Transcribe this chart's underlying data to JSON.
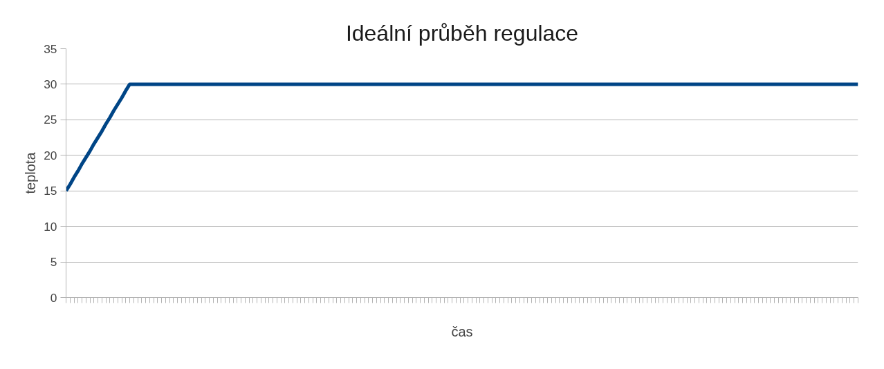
{
  "chart_data": {
    "type": "line",
    "title": "Ideální průběh regulace",
    "xlabel": "čas",
    "ylabel": "teplota",
    "categories": [
      null,
      null,
      null,
      null,
      null,
      null,
      null,
      null,
      null,
      null,
      null,
      null,
      null,
      null,
      null,
      null,
      null,
      null,
      null,
      null,
      null,
      null,
      null,
      null,
      null,
      null,
      null,
      null,
      null,
      null,
      null,
      null,
      null,
      null,
      null,
      null,
      null,
      null,
      null,
      null,
      null,
      null,
      null,
      null,
      null,
      null,
      null,
      null,
      null,
      null,
      null,
      null,
      null,
      null,
      null,
      null,
      null,
      null,
      null,
      null,
      null,
      null,
      null,
      null,
      null,
      null,
      null,
      null,
      null,
      null,
      null,
      null,
      null,
      null,
      null,
      null,
      null,
      null,
      null,
      null,
      null,
      null,
      null,
      null,
      null,
      null,
      null,
      null,
      null,
      null,
      null,
      null,
      null,
      null,
      null,
      null,
      null,
      null,
      null,
      null,
      null,
      null,
      null,
      null,
      null,
      null,
      null,
      null,
      null,
      null,
      null,
      null,
      null,
      null,
      null,
      null,
      null,
      null,
      null,
      null,
      null,
      null,
      null,
      null,
      null,
      null,
      null,
      null,
      null,
      null,
      null,
      null,
      null,
      null,
      null,
      null,
      null,
      null,
      null,
      null,
      null,
      null,
      null,
      null,
      null,
      null,
      null,
      null,
      null,
      null,
      null,
      null,
      null,
      null,
      null,
      null,
      null,
      null,
      null,
      null,
      null,
      null,
      null,
      null,
      null,
      null,
      null,
      null,
      null,
      null,
      null,
      null,
      null,
      null,
      null,
      null,
      null,
      null,
      null,
      null,
      null,
      null,
      null,
      null,
      null,
      null,
      null,
      null,
      null,
      null,
      null,
      null,
      null,
      null,
      null,
      null,
      null,
      null,
      null,
      null
    ],
    "series": [
      {
        "color": "#004586",
        "values": [
          15,
          15.9,
          16.9,
          17.8,
          18.8,
          19.7,
          20.6,
          21.6,
          22.5,
          23.4,
          24.4,
          25.3,
          26.3,
          27.2,
          28.1,
          29.1,
          30,
          30,
          30,
          30,
          30,
          30,
          30,
          30,
          30,
          30,
          30,
          30,
          30,
          30,
          30,
          30,
          30,
          30,
          30,
          30,
          30,
          30,
          30,
          30,
          30,
          30,
          30,
          30,
          30,
          30,
          30,
          30,
          30,
          30,
          30,
          30,
          30,
          30,
          30,
          30,
          30,
          30,
          30,
          30,
          30,
          30,
          30,
          30,
          30,
          30,
          30,
          30,
          30,
          30,
          30,
          30,
          30,
          30,
          30,
          30,
          30,
          30,
          30,
          30,
          30,
          30,
          30,
          30,
          30,
          30,
          30,
          30,
          30,
          30,
          30,
          30,
          30,
          30,
          30,
          30,
          30,
          30,
          30,
          30,
          30,
          30,
          30,
          30,
          30,
          30,
          30,
          30,
          30,
          30,
          30,
          30,
          30,
          30,
          30,
          30,
          30,
          30,
          30,
          30,
          30,
          30,
          30,
          30,
          30,
          30,
          30,
          30,
          30,
          30,
          30,
          30,
          30,
          30,
          30,
          30,
          30,
          30,
          30,
          30,
          30,
          30,
          30,
          30,
          30,
          30,
          30,
          30,
          30,
          30,
          30,
          30,
          30,
          30,
          30,
          30,
          30,
          30,
          30,
          30,
          30,
          30,
          30,
          30,
          30,
          30,
          30,
          30,
          30,
          30,
          30,
          30,
          30,
          30,
          30,
          30,
          30,
          30,
          30,
          30,
          30,
          30,
          30,
          30,
          30,
          30,
          30,
          30,
          30,
          30,
          30,
          30,
          30,
          30,
          30,
          30,
          30,
          30,
          30,
          30
        ]
      }
    ],
    "ylim": [
      0,
      35
    ],
    "yticks": [
      0,
      5,
      10,
      15,
      20,
      25,
      30,
      35
    ],
    "grid": "y",
    "tick_labels": "y",
    "line_style": "solid"
  }
}
